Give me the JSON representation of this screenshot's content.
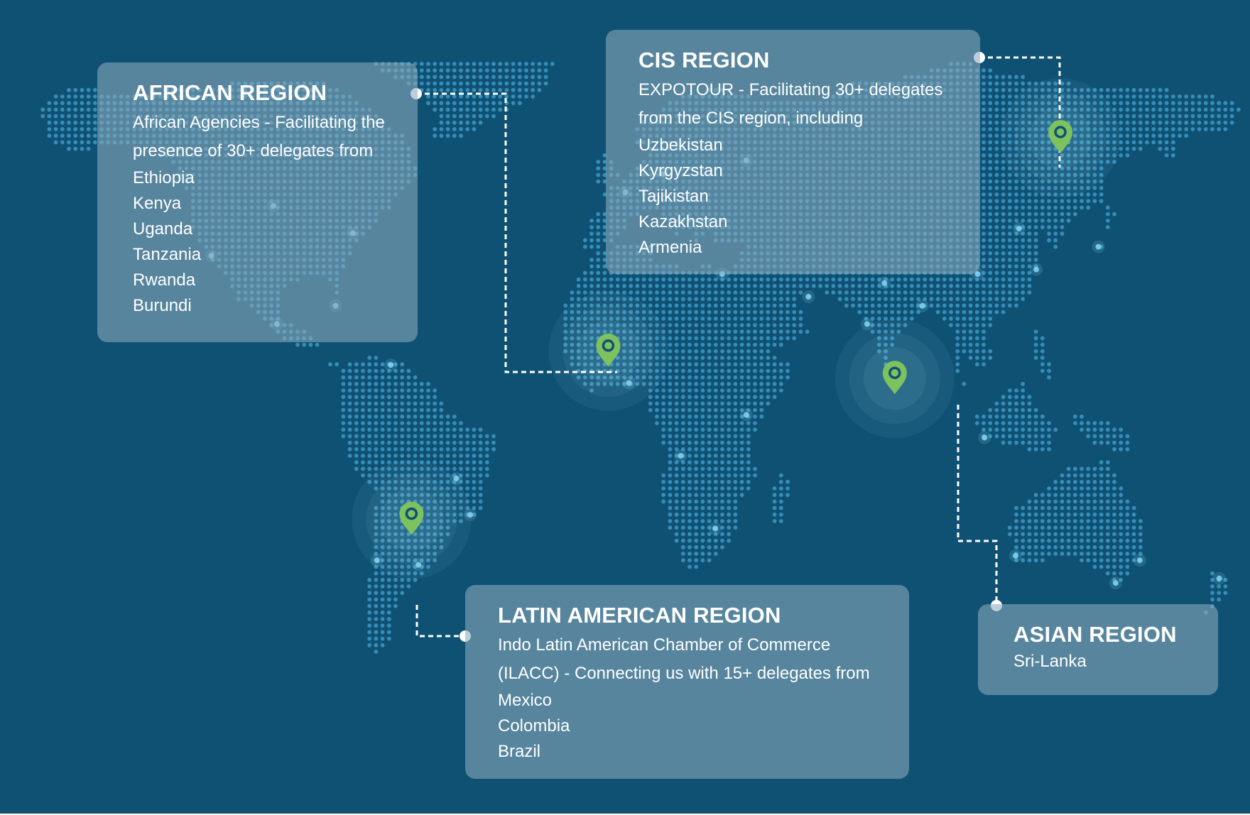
{
  "map": {
    "background_color": "#0f5173",
    "dot_color": "#3d98c4",
    "dot_highlight_color": "#7fd0ee",
    "pin_color": "#7dc25e",
    "connector_color": "#ffffff",
    "bottom_border_color": "#ffffff",
    "pins": [
      {
        "name": "pin-cis-region",
        "icon": "map-pin-icon",
        "region": "cis",
        "lon": 128,
        "lat": 60
      },
      {
        "name": "pin-african-region",
        "icon": "map-pin-icon",
        "region": "african",
        "lon": -3,
        "lat": 13
      },
      {
        "name": "pin-asian-region",
        "icon": "map-pin-icon",
        "region": "asian",
        "lon": 80,
        "lat": 7
      },
      {
        "name": "pin-latin-american-region",
        "icon": "map-pin-icon",
        "region": "latin-american",
        "lon": -60,
        "lat": -24
      }
    ]
  },
  "regions": {
    "african": {
      "title": "AFRICAN REGION",
      "description": "African Agencies - Facilitating the presence of 30+ delegates from",
      "countries": [
        "Ethiopia",
        "Kenya",
        "Uganda",
        "Tanzania",
        "Rwanda",
        "Burundi"
      ]
    },
    "cis": {
      "title": "CIS REGION",
      "description": "EXPOTOUR - Facilitating 30+ delegates from the CIS region, including",
      "countries": [
        "Uzbekistan",
        "Kyrgyzstan",
        "Tajikistan",
        "Kazakhstan",
        "Armenia"
      ]
    },
    "latin_american": {
      "title": "LATIN AMERICAN REGION",
      "description": "Indo Latin American Chamber of Commerce (ILACC) - Connecting us with 15+ delegates from",
      "countries": [
        "Mexico",
        "Colombia",
        "Brazil"
      ]
    },
    "asian": {
      "title": "ASIAN REGION",
      "description": "Sri-Lanka"
    }
  }
}
